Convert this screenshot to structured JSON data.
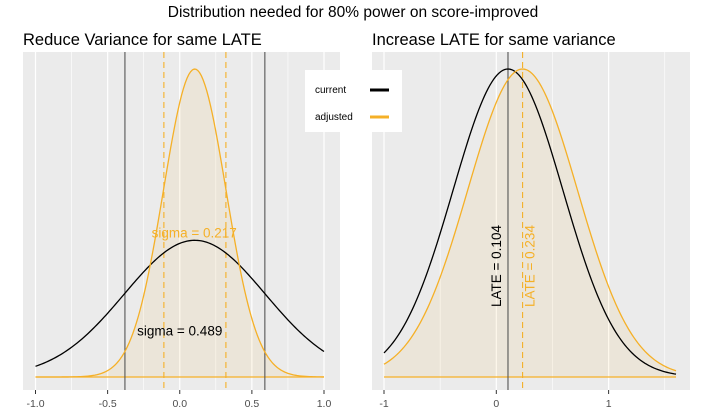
{
  "figure": {
    "title": "Distribution needed for 80% power on score-improved"
  },
  "legend": {
    "entries": [
      {
        "label": "current",
        "color": "#000000"
      },
      {
        "label": "adjusted",
        "color": "#f5b027"
      }
    ]
  },
  "chart_data": [
    {
      "type": "line",
      "title": "Reduce Variance for same LATE",
      "xlim": [
        -1.0,
        1.0
      ],
      "x_ticks": [
        -1.0,
        -0.5,
        0.0,
        0.5,
        1.0
      ],
      "x_tick_labels": [
        "-1.0",
        "-0.5",
        "0.0",
        "0.5",
        "1.0"
      ],
      "grid": true,
      "series": [
        {
          "name": "current",
          "kind": "normal-density",
          "mean": 0.104,
          "sd": 0.489,
          "color": "#000000",
          "filled": false
        },
        {
          "name": "adjusted",
          "kind": "normal-density",
          "mean": 0.104,
          "sd": 0.217,
          "color": "#f5b027",
          "filled": true
        }
      ],
      "vlines": [
        {
          "x": -0.38,
          "color": "#555555",
          "style": "solid"
        },
        {
          "x": 0.59,
          "color": "#555555",
          "style": "solid"
        },
        {
          "x": -0.11,
          "color": "#f5b027",
          "style": "dashed"
        },
        {
          "x": 0.32,
          "color": "#f5b027",
          "style": "dashed"
        }
      ],
      "annotations": [
        {
          "text": "sigma = 0.217",
          "color": "#f5b027",
          "x": 0.1,
          "y_fraction": 0.46
        },
        {
          "text": "sigma = 0.489",
          "color": "#000000",
          "x": 0.0,
          "y_fraction": 0.17
        }
      ]
    },
    {
      "type": "line",
      "title": "Increase LATE for same variance",
      "xlim": [
        -1.0,
        1.6
      ],
      "x_ticks": [
        -1,
        0,
        1
      ],
      "x_tick_labels": [
        "-1",
        "0",
        "1"
      ],
      "grid": true,
      "series": [
        {
          "name": "current",
          "kind": "normal-density",
          "mean": 0.104,
          "sd": 0.489,
          "color": "#000000",
          "filled": false
        },
        {
          "name": "adjusted",
          "kind": "normal-density",
          "mean": 0.234,
          "sd": 0.489,
          "color": "#f5b027",
          "filled": true
        }
      ],
      "vlines": [
        {
          "x": 0.104,
          "color": "#555555",
          "style": "solid"
        },
        {
          "x": 0.234,
          "color": "#f5b027",
          "style": "dashed"
        }
      ],
      "annotations": [
        {
          "text": "LATE = 0.104",
          "color": "#000000",
          "x": 0.04,
          "rotate": -90
        },
        {
          "text": "LATE = 0.234",
          "color": "#f5b027",
          "x": 0.34,
          "rotate": -90
        }
      ]
    }
  ]
}
